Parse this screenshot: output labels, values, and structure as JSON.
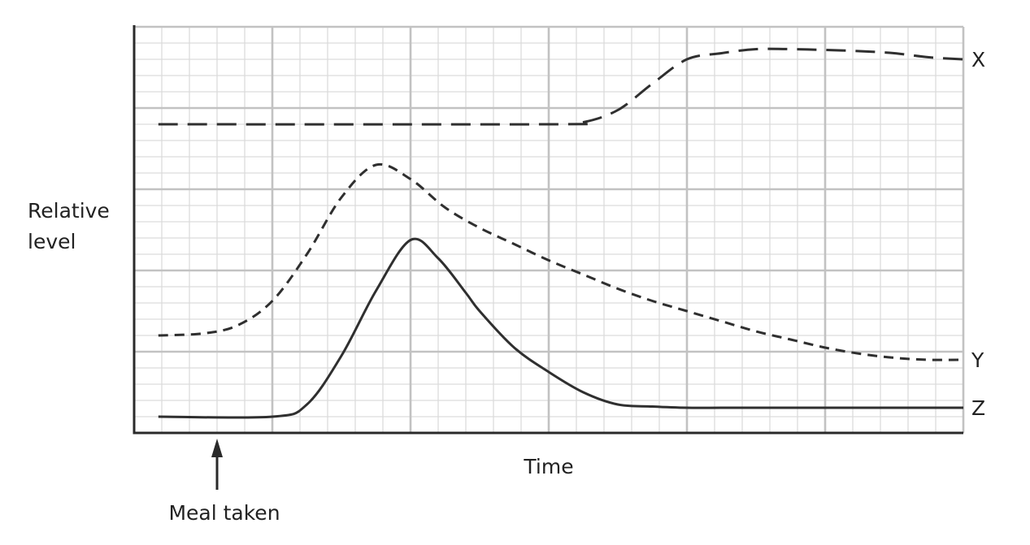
{
  "chart_data": {
    "type": "line",
    "title": "",
    "xlabel": "Time",
    "ylabel": [
      "Relative",
      "level"
    ],
    "xlim": [
      0,
      12
    ],
    "ylim": [
      0,
      10
    ],
    "grid": true,
    "x_major_step": 2,
    "x_minor_step": 0.4,
    "y_major_step": 2,
    "y_minor_step": 0.4,
    "annotation": {
      "text": "Meal taken",
      "x": 1.2
    },
    "series": [
      {
        "name": "X",
        "style": "long-dash",
        "x": [
          0.35,
          6.0,
          6.5,
          7.0,
          7.5,
          8.0,
          8.5,
          9.0,
          9.5,
          10.0,
          10.5,
          11.0,
          11.5,
          12.0
        ],
        "y": [
          7.6,
          7.6,
          7.65,
          7.95,
          8.6,
          9.2,
          9.35,
          9.45,
          9.45,
          9.43,
          9.4,
          9.35,
          9.25,
          9.2
        ]
      },
      {
        "name": "Y",
        "style": "short-dash",
        "x": [
          0.35,
          1.0,
          1.5,
          2.0,
          2.5,
          3.0,
          3.5,
          4.0,
          4.5,
          5.0,
          5.5,
          6.0,
          6.5,
          7.0,
          7.5,
          8.0,
          8.5,
          9.0,
          9.5,
          10.0,
          10.5,
          11.0,
          11.5,
          12.0
        ],
        "y": [
          2.4,
          2.45,
          2.65,
          3.25,
          4.4,
          5.8,
          6.6,
          6.25,
          5.55,
          5.05,
          4.65,
          4.25,
          3.9,
          3.55,
          3.25,
          3.0,
          2.75,
          2.5,
          2.3,
          2.1,
          1.95,
          1.85,
          1.8,
          1.8
        ]
      },
      {
        "name": "Z",
        "style": "solid",
        "x": [
          0.35,
          2.0,
          2.5,
          3.0,
          3.5,
          4.0,
          4.4,
          4.8,
          5.0,
          5.5,
          6.0,
          6.5,
          7.0,
          7.5,
          8.0,
          8.5,
          9.0,
          10.0,
          11.0,
          12.0
        ],
        "y": [
          0.4,
          0.4,
          0.7,
          1.9,
          3.5,
          4.75,
          4.3,
          3.45,
          3.0,
          2.1,
          1.5,
          1.0,
          0.7,
          0.65,
          0.62,
          0.62,
          0.62,
          0.62,
          0.62,
          0.62
        ]
      }
    ]
  }
}
